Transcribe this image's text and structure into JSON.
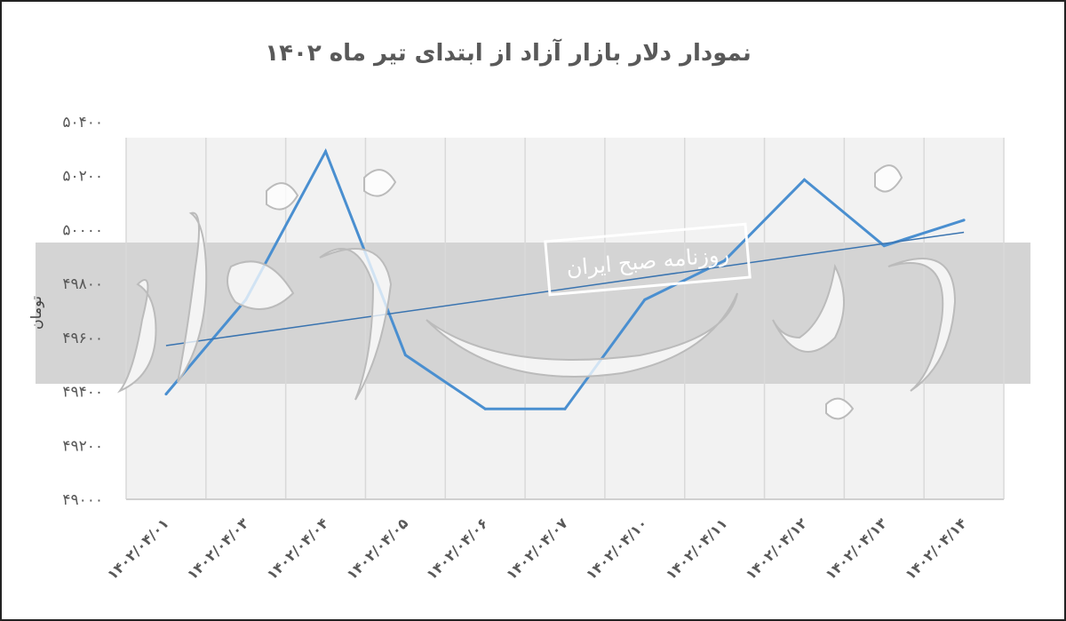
{
  "chart_data": {
    "type": "line",
    "title": "نمودار دلار بازار آزاد از ابتدای تیر ماه ۱۴۰۲",
    "ylabel": "تومان",
    "xlabel": "",
    "categories": [
      "۱۴۰۲/۰۴/۰۱",
      "۱۴۰۲/۰۴/۰۳",
      "۱۴۰۲/۰۴/۰۴",
      "۱۴۰۲/۰۴/۰۵",
      "۱۴۰۲/۰۴/۰۶",
      "۱۴۰۲/۰۴/۰۷",
      "۱۴۰۲/۰۴/۱۰",
      "۱۴۰۲/۰۴/۱۱",
      "۱۴۰۲/۰۴/۱۲",
      "۱۴۰۲/۰۴/۱۳",
      "۱۴۰۲/۰۴/۱۴"
    ],
    "series": [
      {
        "values": [
          49390,
          49740,
          50290,
          49535,
          49335,
          49335,
          49740,
          49885,
          50185,
          49940,
          50035
        ]
      }
    ],
    "trendline": {
      "type": "linear",
      "start": 49570,
      "end": 49990
    },
    "ylim": [
      49000,
      50400
    ],
    "yticks": [
      49000,
      49200,
      49400,
      49600,
      49800,
      50000,
      50200,
      50400
    ],
    "ytick_labels": [
      "۴۹۰۰۰",
      "۴۹۲۰۰",
      "۴۹۴۰۰",
      "۴۹۶۰۰",
      "۴۹۸۰۰",
      "۵۰۰۰۰",
      "۵۰۲۰۰",
      "۵۰۴۰۰"
    ],
    "grid": "vertical",
    "legend": "none",
    "colors": {
      "line": "#4a8fd0",
      "trend": "#3a74b0",
      "plot_bg": "#f2f2f2",
      "text": "#595959"
    }
  },
  "watermark": {
    "logo": "دنیای اقتصاد",
    "banner": "روزنامه صبح ایران"
  }
}
